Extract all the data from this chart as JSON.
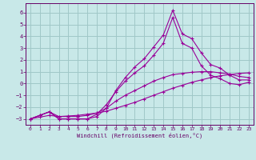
{
  "xlabel": "Windchill (Refroidissement éolien,°C)",
  "xlim": [
    -0.5,
    23.5
  ],
  "ylim": [
    -3.5,
    6.8
  ],
  "xticks": [
    0,
    1,
    2,
    3,
    4,
    5,
    6,
    7,
    8,
    9,
    10,
    11,
    12,
    13,
    14,
    15,
    16,
    17,
    18,
    19,
    20,
    21,
    22,
    23
  ],
  "yticks": [
    -3,
    -2,
    -1,
    0,
    1,
    2,
    3,
    4,
    5,
    6
  ],
  "background_color": "#c8e8e8",
  "grid_color": "#a0c8c8",
  "line_color": "#990099",
  "x_data": [
    0,
    1,
    2,
    3,
    4,
    5,
    6,
    7,
    8,
    9,
    10,
    11,
    12,
    13,
    14,
    15,
    16,
    17,
    18,
    19,
    20,
    21,
    22,
    23
  ],
  "line1": [
    -3.0,
    -2.7,
    -2.4,
    -3.0,
    -3.0,
    -3.0,
    -3.0,
    -2.8,
    -2.1,
    -0.6,
    0.5,
    1.4,
    2.1,
    3.1,
    4.1,
    6.2,
    4.2,
    3.8,
    2.6,
    1.6,
    1.3,
    0.7,
    0.3,
    0.3
  ],
  "line2": [
    -3.0,
    -2.7,
    -2.4,
    -3.0,
    -3.0,
    -3.0,
    -3.0,
    -2.6,
    -1.8,
    -0.7,
    0.2,
    0.9,
    1.5,
    2.4,
    3.4,
    5.6,
    3.4,
    3.0,
    1.5,
    0.7,
    0.4,
    0.0,
    -0.1,
    0.1
  ],
  "line3": [
    -3.0,
    -2.7,
    -2.4,
    -2.8,
    -2.8,
    -2.8,
    -2.7,
    -2.5,
    -2.1,
    -1.5,
    -1.0,
    -0.6,
    -0.2,
    0.2,
    0.5,
    0.75,
    0.85,
    0.95,
    1.0,
    1.0,
    0.9,
    0.8,
    0.6,
    0.5
  ],
  "line4": [
    -3.0,
    -2.85,
    -2.7,
    -2.8,
    -2.75,
    -2.7,
    -2.6,
    -2.5,
    -2.35,
    -2.1,
    -1.85,
    -1.6,
    -1.3,
    -1.0,
    -0.7,
    -0.4,
    -0.15,
    0.1,
    0.3,
    0.5,
    0.65,
    0.75,
    0.85,
    0.9
  ]
}
